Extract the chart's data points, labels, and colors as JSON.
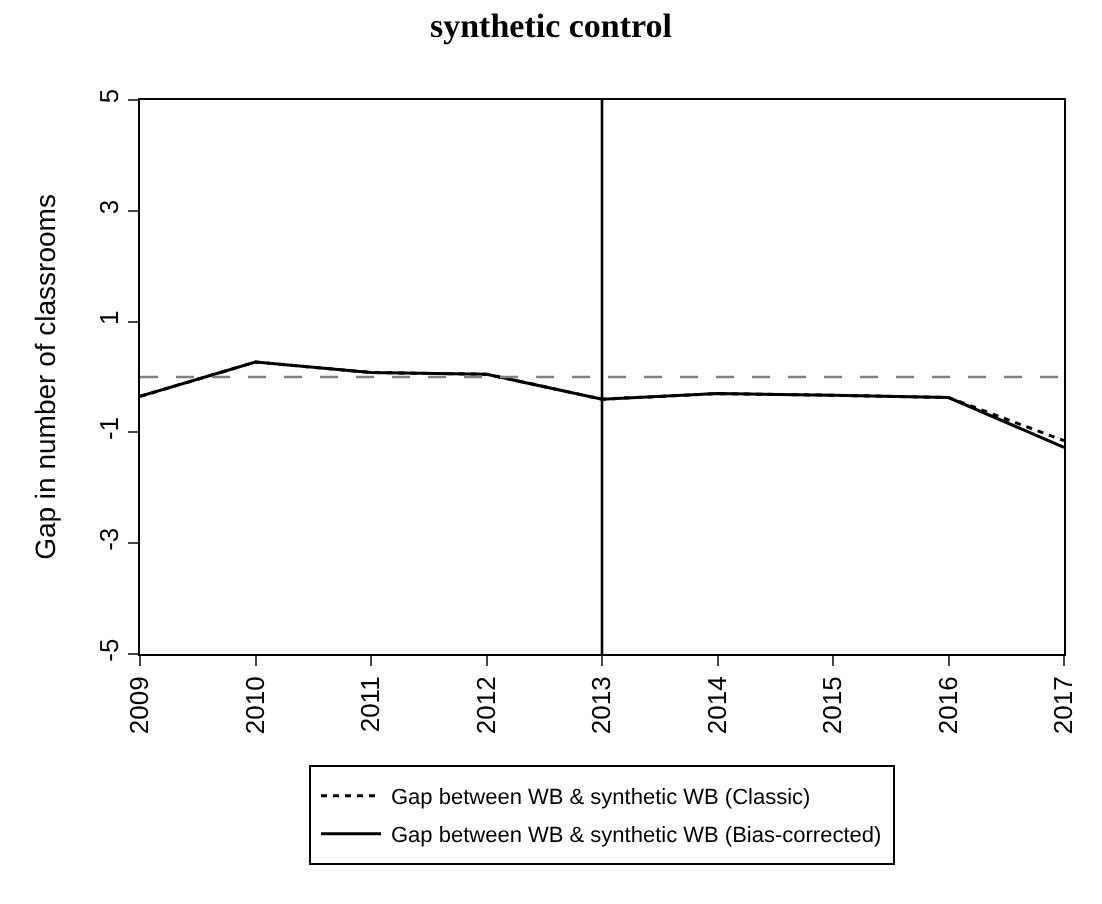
{
  "chart_data": {
    "type": "line",
    "title": "synthetic control",
    "ylabel": "Gap in number of classrooms",
    "x": [
      2009,
      2010,
      2011,
      2012,
      2013,
      2014,
      2015,
      2016,
      2017
    ],
    "series": [
      {
        "name": "Gap between WB & synthetic WB (Classic)",
        "color": "#000000",
        "line_style": "dotted",
        "values": [
          -0.35,
          0.27,
          0.08,
          0.05,
          -0.4,
          -0.3,
          -0.33,
          -0.37,
          -1.15
        ]
      },
      {
        "name": "Gap between WB & synthetic WB (Bias-corrected)",
        "color": "#000000",
        "line_style": "solid",
        "values": [
          -0.35,
          0.27,
          0.08,
          0.05,
          -0.4,
          -0.3,
          -0.33,
          -0.37,
          -1.27
        ]
      }
    ],
    "xlim": [
      2009,
      2017
    ],
    "xticks": [
      2009,
      2010,
      2011,
      2012,
      2013,
      2014,
      2015,
      2016,
      2017
    ],
    "ylim": [
      -5,
      5
    ],
    "yticks": [
      -5,
      -3,
      -1,
      1,
      3,
      5
    ],
    "ref_lines": [
      {
        "axis": "y",
        "value": 0,
        "color": "#808080",
        "line_style": "dashed"
      },
      {
        "axis": "x",
        "value": 2013,
        "color": "#000000",
        "line_style": "solid"
      }
    ],
    "legend": "bottom",
    "marker": "none"
  }
}
